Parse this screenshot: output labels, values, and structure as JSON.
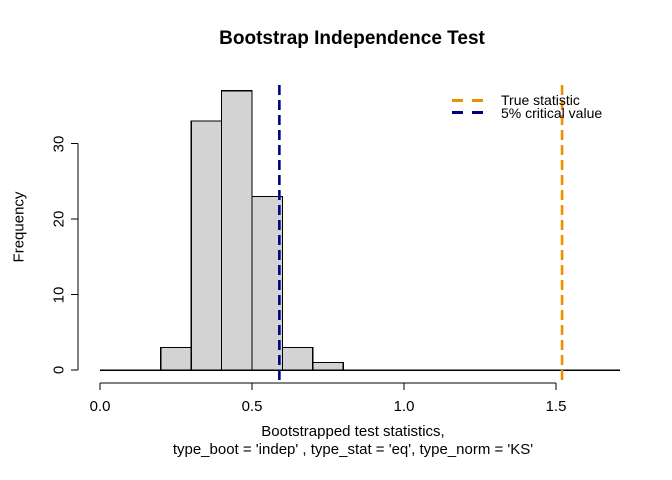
{
  "colors": {
    "background": "#ffffff",
    "bar_fill": "#D3D3D3",
    "bar_stroke": "#000000",
    "axis": "#000000",
    "true_stat": "#EE8F00",
    "critical_value": "#000080"
  },
  "chart_data": {
    "type": "histogram",
    "title": "Bootstrap Independence Test",
    "xlabel_line1": "Bootstrapped test statistics,",
    "xlabel_line2": "type_boot = 'indep' , type_stat = 'eq', type_norm = 'KS'",
    "ylabel": "Frequency",
    "bins": {
      "start": 0.2,
      "width": 0.1,
      "counts": [
        3,
        33,
        37,
        23,
        3,
        1
      ]
    },
    "n_total": 100,
    "x_ticks": [
      0.0,
      0.5,
      1.0,
      1.5
    ],
    "x_tick_labels": [
      "0.0",
      "0.5",
      "1.0",
      "1.5"
    ],
    "y_ticks": [
      0,
      10,
      20,
      30
    ],
    "y_tick_labels": [
      "0",
      "10",
      "20",
      "30"
    ],
    "xlim": [
      0,
      1.72
    ],
    "ylim": [
      0,
      38
    ],
    "grid": false,
    "baseline_extent": [
      0,
      1.71
    ],
    "vlines": [
      {
        "name": "true-statistic-line",
        "x": 1.52,
        "color": "#EE8F00",
        "style": "dashed"
      },
      {
        "name": "critical-value-line",
        "x": 0.59,
        "color": "#000080",
        "style": "dashed"
      }
    ],
    "legend": {
      "position": "top-right",
      "items": [
        {
          "label": "True statistic",
          "color": "#EE8F00",
          "line_style": "dashed"
        },
        {
          "label": "5% critical value",
          "color": "#000080",
          "line_style": "dashed"
        }
      ]
    }
  }
}
